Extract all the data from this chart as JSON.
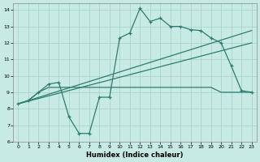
{
  "xlabel": "Humidex (Indice chaleur)",
  "bg_color": "#c8eae4",
  "line_color": "#2d7d6e",
  "grid_color": "#a8d4cc",
  "xlim": [
    -0.5,
    23.5
  ],
  "ylim": [
    6,
    14.4
  ],
  "xticks": [
    0,
    1,
    2,
    3,
    4,
    5,
    6,
    7,
    8,
    9,
    10,
    11,
    12,
    13,
    14,
    15,
    16,
    17,
    18,
    19,
    20,
    21,
    22,
    23
  ],
  "yticks": [
    6,
    7,
    8,
    9,
    10,
    11,
    12,
    13,
    14
  ],
  "line_zigzag_x": [
    0,
    1,
    2,
    3,
    4,
    5,
    6,
    7,
    8,
    9,
    10,
    11,
    12,
    13,
    14,
    15,
    16,
    17,
    18,
    19,
    20,
    21,
    22,
    23
  ],
  "line_zigzag_y": [
    8.3,
    8.5,
    9.0,
    9.5,
    9.6,
    7.5,
    6.5,
    6.5,
    8.7,
    8.7,
    12.3,
    12.6,
    14.1,
    13.3,
    13.5,
    13.0,
    13.0,
    12.8,
    12.75,
    12.3,
    12.0,
    10.6,
    9.1,
    9.0
  ],
  "line_flat_x": [
    0,
    1,
    2,
    3,
    4,
    5,
    6,
    7,
    8,
    9,
    10,
    11,
    12,
    13,
    14,
    15,
    16,
    17,
    18,
    19,
    20,
    21,
    22,
    23
  ],
  "line_flat_y": [
    8.3,
    8.5,
    9.0,
    9.3,
    9.3,
    9.3,
    9.3,
    9.3,
    9.3,
    9.3,
    9.3,
    9.3,
    9.3,
    9.3,
    9.3,
    9.3,
    9.3,
    9.3,
    9.3,
    9.3,
    9.0,
    9.0,
    9.0,
    9.0
  ],
  "line_trend1_x": [
    0,
    23
  ],
  "line_trend1_y": [
    8.3,
    12.75
  ],
  "line_trend2_x": [
    0,
    23
  ],
  "line_trend2_y": [
    8.3,
    12.0
  ]
}
